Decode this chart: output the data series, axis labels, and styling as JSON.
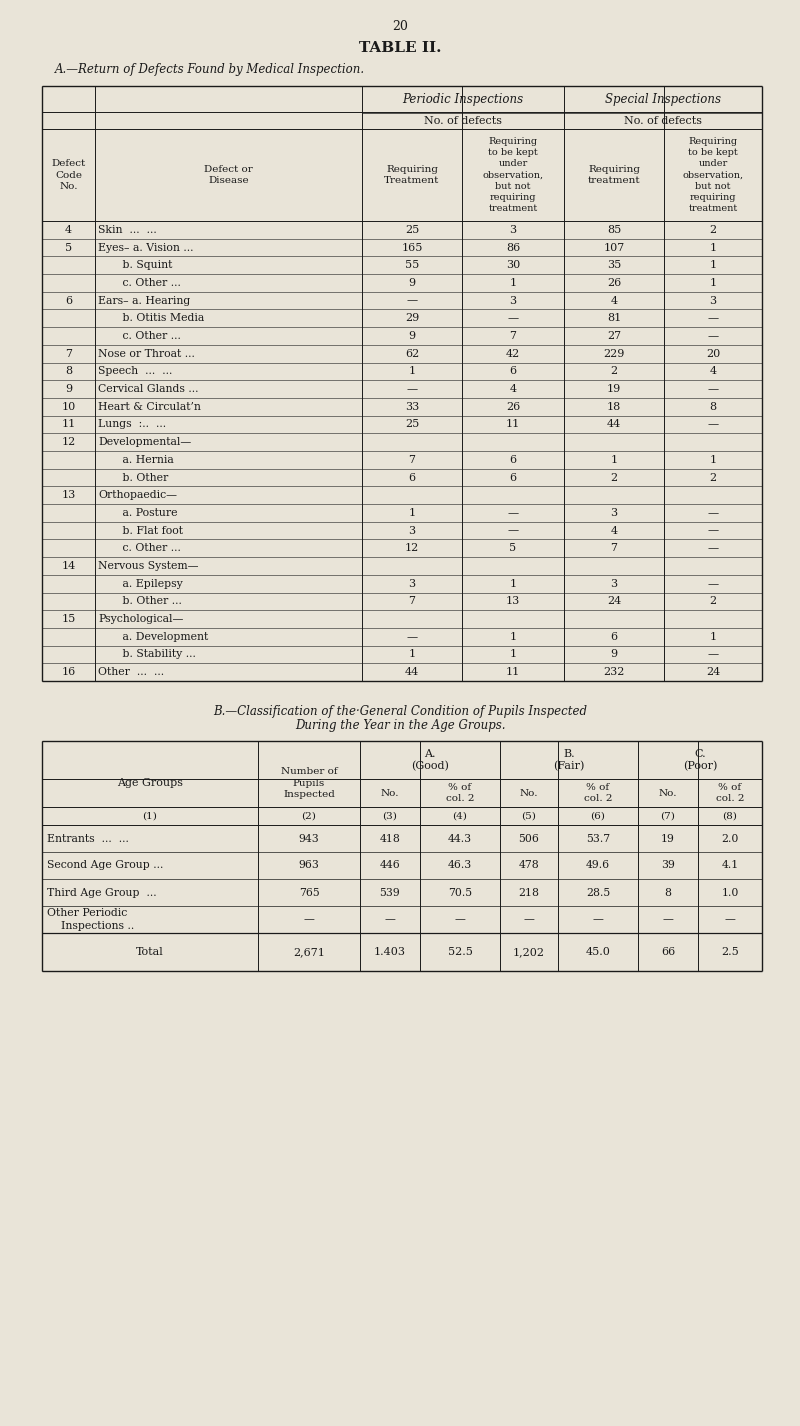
{
  "page_number": "20",
  "title": "TABLE II.",
  "section_a_title": "A.—Return of Defects Found by Medical Inspection.",
  "bg_color": "#e9e4d8",
  "text_color": "#1a1a1a",
  "table_a_rows": [
    [
      "4",
      "Skin  ...  ...",
      "25",
      "3",
      "85",
      "2"
    ],
    [
      "5",
      "Eyes– a. Vision ...",
      "165",
      "86",
      "107",
      "1"
    ],
    [
      "",
      "       b. Squint",
      "55",
      "30",
      "35",
      "1"
    ],
    [
      "",
      "       c. Other ...",
      "9",
      "1",
      "26",
      "1"
    ],
    [
      "6",
      "Ears– a. Hearing",
      "—",
      "3",
      "4",
      "3"
    ],
    [
      "",
      "       b. Otitis Media",
      "29",
      "—",
      "81",
      "—"
    ],
    [
      "",
      "       c. Other ...",
      "9",
      "7",
      "27",
      "—"
    ],
    [
      "7",
      "Nose or Throat ...",
      "62",
      "42",
      "229",
      "20"
    ],
    [
      "8",
      "Speech  ...  ...",
      "1",
      "6",
      "2",
      "4"
    ],
    [
      "9",
      "Cervical Glands ...",
      "—",
      "4",
      "19",
      "—"
    ],
    [
      "10",
      "Heart & Circulat’n",
      "33",
      "26",
      "18",
      "8"
    ],
    [
      "11",
      "Lungs  :..  ...",
      "25",
      "11",
      "44",
      "—"
    ],
    [
      "12",
      "Developmental—",
      "",
      "",
      "",
      ""
    ],
    [
      "",
      "       a. Hernia",
      "7",
      "6",
      "1",
      "1"
    ],
    [
      "",
      "       b. Other",
      "6",
      "6",
      "2",
      "2"
    ],
    [
      "13",
      "Orthopaedic—",
      "",
      "",
      "",
      ""
    ],
    [
      "",
      "       a. Posture",
      "1",
      "—",
      "3",
      "—"
    ],
    [
      "",
      "       b. Flat foot",
      "3",
      "—",
      "4",
      "—"
    ],
    [
      "",
      "       c. Other ...",
      "12",
      "5",
      "7",
      "—"
    ],
    [
      "14",
      "Nervous System—",
      "",
      "",
      "",
      ""
    ],
    [
      "",
      "       a. Epilepsy",
      "3",
      "1",
      "3",
      "—"
    ],
    [
      "",
      "       b. Other ...",
      "7",
      "13",
      "24",
      "2"
    ],
    [
      "15",
      "Psychological—",
      "",
      "",
      "",
      ""
    ],
    [
      "",
      "       a. Development",
      "—",
      "1",
      "6",
      "1"
    ],
    [
      "",
      "       b. Stability ...",
      "1",
      "1",
      "9",
      "—"
    ],
    [
      "16",
      "Other  ...  ...",
      "44",
      "11",
      "232",
      "24"
    ]
  ],
  "table_b_data_rows": [
    [
      "Entrants  ...  ...",
      "943",
      "418",
      "44.3",
      "506",
      "53.7",
      "19",
      "2.0"
    ],
    [
      "Second Age Group ...",
      "963",
      "446",
      "46.3",
      "478",
      "49.6",
      "39",
      "4.1"
    ],
    [
      "Third Age Group  ...",
      "765",
      "539",
      "70.5",
      "218",
      "28.5",
      "8",
      "1.0"
    ],
    [
      "Other Periodic\n    Inspections ..",
      "—",
      "—",
      "—",
      "—",
      "—",
      "—",
      "—"
    ]
  ],
  "table_b_total": [
    "Total",
    "2,671",
    "1.403",
    "52.5",
    "1,202",
    "45.0",
    "66",
    "2.5"
  ]
}
